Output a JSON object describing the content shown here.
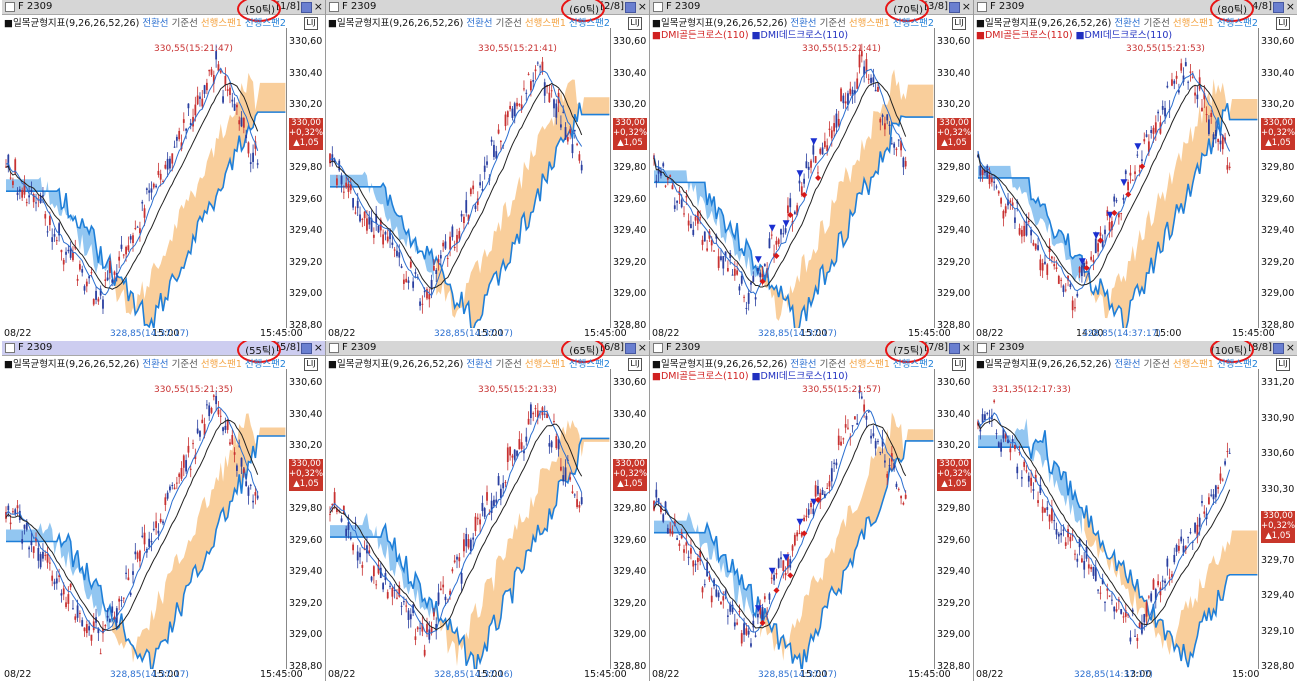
{
  "colors": {
    "cloud_pos": "#7fbcef",
    "cloud_neg": "#f8c58a",
    "span1": "#f4a444",
    "span2": "#1f7fd8",
    "conv": "#2b6fd0",
    "base": "#222222",
    "up": "#c83232",
    "down": "#2a3fa0",
    "highlight": "#e81414"
  },
  "legend": {
    "indicator": "일목균형지표(9,26,26,52,26)",
    "conversion": "전환선",
    "base": "기준선",
    "span1": "선행스팬1",
    "span2": "선행스팬2",
    "dmi_gold": "DMI골든크로스(110)",
    "dmi_dead": "DMI데드크로스(110)"
  },
  "panels": [
    {
      "symbol": "F 2309",
      "ticks": "(50틱)",
      "index": "[1/8]",
      "high": "330,55(15:21:47)",
      "low": "328,85(14:37:17)",
      "yticks": [
        "330,60",
        "330,40",
        "330,20",
        "330,00",
        "329,80",
        "329,60",
        "329,40",
        "329,20",
        "329,00",
        "328,80"
      ],
      "price": "330,00",
      "pct": "+0,32%",
      "chg": "▲1,05",
      "xticks": [
        "08/22",
        "15:00",
        "15:45:00"
      ],
      "dmi": false,
      "seed": 1
    },
    {
      "symbol": "F 2309",
      "ticks": "(60틱)",
      "index": "[2/8]",
      "high": "330,55(15:21:41)",
      "low": "328,85(14:37:17)",
      "yticks": [
        "330,60",
        "330,40",
        "330,20",
        "330,00",
        "329,80",
        "329,60",
        "329,40",
        "329,20",
        "329,00",
        "328,80"
      ],
      "price": "330,00",
      "pct": "+0,32%",
      "chg": "▲1,05",
      "xticks": [
        "08/22",
        "15:00",
        "15:45:00"
      ],
      "dmi": false,
      "seed": 2
    },
    {
      "symbol": "F 2309",
      "ticks": "(70틱)",
      "index": "[3/8]",
      "high": "330,55(15:21:41)",
      "low": "328,85(14:37:17)",
      "yticks": [
        "330,60",
        "330,40",
        "330,20",
        "330,00",
        "329,80",
        "329,60",
        "329,40",
        "329,20",
        "329,00",
        "328,80"
      ],
      "price": "330,00",
      "pct": "+0,32%",
      "chg": "▲1,05",
      "xticks": [
        "08/22",
        "15:00",
        "15:45:00"
      ],
      "dmi": true,
      "seed": 3
    },
    {
      "symbol": "F 2309",
      "ticks": "(80틱)",
      "index": "4/8]",
      "high": "330,55(15:21:53)",
      "low": "328,85(14:37:17)",
      "yticks": [
        "330,60",
        "330,40",
        "330,20",
        "330,00",
        "329,80",
        "329,60",
        "329,40",
        "329,20",
        "329,00",
        "328,80"
      ],
      "price": "330,00",
      "pct": "+0,32%",
      "chg": "▲1,05",
      "xticks": [
        "08/22",
        "14:00",
        "15:00",
        "15:45:00"
      ],
      "dmi": true,
      "seed": 4
    },
    {
      "symbol": "F 2309",
      "ticks": "(55틱)",
      "index": "[5/8]",
      "high": "330,55(15:21:35)",
      "low": "328,85(14:37:17)",
      "yticks": [
        "330,60",
        "330,40",
        "330,20",
        "330,00",
        "329,80",
        "329,60",
        "329,40",
        "329,20",
        "329,00",
        "328,80"
      ],
      "price": "330,00",
      "pct": "+0,32%",
      "chg": "▲1,05",
      "xticks": [
        "08/22",
        "15:00",
        "15:45:00"
      ],
      "dmi": false,
      "seed": 5
    },
    {
      "symbol": "F 2309",
      "ticks": "(65틱)",
      "index": "[6/8]",
      "high": "330,55(15:21:33)",
      "low": "328,85(14:37:16)",
      "yticks": [
        "330,60",
        "330,40",
        "330,20",
        "330,00",
        "329,80",
        "329,60",
        "329,40",
        "329,20",
        "329,00",
        "328,80"
      ],
      "price": "330,00",
      "pct": "+0,32%",
      "chg": "▲1,05",
      "xticks": [
        "08/22",
        "15:00",
        "15:45:00"
      ],
      "dmi": false,
      "seed": 6
    },
    {
      "symbol": "F 2309",
      "ticks": "(75틱)",
      "index": "[7/8]",
      "high": "330,55(15:21:57)",
      "low": "328,85(14:37:17)",
      "yticks": [
        "330,60",
        "330,40",
        "330,20",
        "330,00",
        "329,80",
        "329,60",
        "329,40",
        "329,20",
        "329,00",
        "328,80"
      ],
      "price": "330,00",
      "pct": "+0,32%",
      "chg": "▲1,05",
      "xticks": [
        "08/22",
        "15:00",
        "15:45:00"
      ],
      "dmi": true,
      "seed": 7
    },
    {
      "symbol": "F 2309",
      "ticks": "(100틱)",
      "index": "[8/8]",
      "high": "331,35(12:17:33)",
      "low": "328,85(14:37:17)",
      "yticks": [
        "331,20",
        "330,90",
        "330,60",
        "330,30",
        "330,00",
        "329,70",
        "329,40",
        "329,10",
        "328,80"
      ],
      "price": "330,00",
      "pct": "+0,32%",
      "chg": "▲1,05",
      "xticks": [
        "08/22",
        "13:00",
        "15:00"
      ],
      "dmi": false,
      "seed": 8
    }
  ]
}
